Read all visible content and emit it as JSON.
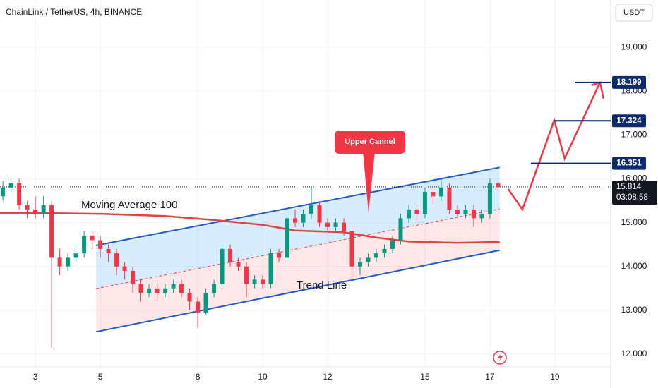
{
  "chart_data": {
    "type": "candlestick",
    "title": "ChainLink / TetherUS, 4h, BINANCE",
    "currency": "USDT",
    "up_color": "#089981",
    "down_color": "#f23645",
    "grid": true,
    "xlim": [
      1.91,
      20.72
    ],
    "xticks": [
      3,
      5,
      8,
      10,
      12,
      15,
      17,
      19
    ],
    "ylim": [
      11.71,
      20.08
    ],
    "yticks": [
      {
        "value": 12,
        "label": "12.000"
      },
      {
        "value": 13,
        "label": "13.000"
      },
      {
        "value": 14,
        "label": "14.000"
      },
      {
        "value": 15,
        "label": "15.000"
      },
      {
        "value": 16,
        "label": "16.000"
      },
      {
        "value": 17,
        "label": "17.000"
      },
      {
        "value": 18,
        "label": "18.000"
      },
      {
        "value": 19,
        "label": "19.000"
      }
    ],
    "x": [
      2,
      2.25,
      2.5,
      2.75,
      3,
      3.25,
      3.5,
      3.75,
      4,
      4.25,
      4.5,
      4.75,
      5,
      5.25,
      5.5,
      5.75,
      6,
      6.25,
      6.5,
      6.75,
      7,
      7.25,
      7.5,
      7.75,
      8,
      8.25,
      8.5,
      8.75,
      9,
      9.25,
      9.5,
      9.75,
      10,
      10.25,
      10.5,
      10.75,
      11,
      11.25,
      11.5,
      11.75,
      12,
      12.25,
      12.5,
      12.75,
      13,
      13.25,
      13.5,
      13.75,
      14,
      14.25,
      14.5,
      14.75,
      15,
      15.25,
      15.5,
      15.75,
      16,
      16.25,
      16.5,
      16.75,
      17,
      17.25
    ],
    "candles": [
      [
        15.6,
        15.95,
        15.5,
        15.8
      ],
      [
        15.8,
        16.05,
        15.7,
        15.9
      ],
      [
        15.9,
        16.0,
        15.3,
        15.4
      ],
      [
        15.4,
        15.5,
        15.1,
        15.3
      ],
      [
        15.3,
        15.6,
        15.1,
        15.2
      ],
      [
        15.2,
        15.6,
        15.1,
        15.4
      ],
      [
        15.4,
        15.5,
        12.15,
        14.2
      ],
      [
        14.2,
        14.4,
        13.8,
        14.0
      ],
      [
        14.0,
        14.3,
        13.9,
        14.2
      ],
      [
        14.2,
        14.5,
        14.1,
        14.3
      ],
      [
        14.3,
        14.8,
        14.2,
        14.7
      ],
      [
        14.7,
        14.8,
        14.4,
        14.6
      ],
      [
        14.6,
        14.7,
        14.2,
        14.4
      ],
      [
        14.4,
        14.5,
        14.1,
        14.3
      ],
      [
        14.3,
        14.4,
        13.8,
        14.0
      ],
      [
        14.0,
        14.1,
        13.7,
        13.9
      ],
      [
        13.9,
        14.0,
        13.4,
        13.6
      ],
      [
        13.6,
        13.7,
        13.2,
        13.4
      ],
      [
        13.4,
        13.6,
        13.3,
        13.5
      ],
      [
        13.5,
        13.6,
        13.2,
        13.4
      ],
      [
        13.4,
        13.6,
        13.3,
        13.5
      ],
      [
        13.5,
        13.7,
        13.4,
        13.6
      ],
      [
        13.6,
        13.7,
        13.3,
        13.4
      ],
      [
        13.4,
        13.5,
        13.0,
        13.2
      ],
      [
        13.2,
        13.3,
        12.6,
        12.95
      ],
      [
        12.95,
        13.5,
        12.9,
        13.4
      ],
      [
        13.4,
        13.7,
        13.3,
        13.6
      ],
      [
        13.6,
        14.5,
        13.5,
        14.4
      ],
      [
        14.4,
        14.5,
        14.0,
        14.1
      ],
      [
        14.1,
        14.2,
        13.9,
        14.0
      ],
      [
        14.0,
        14.1,
        13.3,
        13.6
      ],
      [
        13.6,
        13.8,
        13.5,
        13.7
      ],
      [
        13.7,
        13.8,
        13.5,
        13.6
      ],
      [
        13.6,
        14.4,
        13.5,
        14.3
      ],
      [
        14.3,
        14.4,
        14.1,
        14.2
      ],
      [
        14.2,
        15.2,
        14.1,
        15.1
      ],
      [
        15.1,
        15.3,
        14.9,
        15.0
      ],
      [
        15.0,
        15.3,
        14.9,
        15.2
      ],
      [
        15.2,
        15.8,
        15.1,
        15.4
      ],
      [
        15.4,
        15.5,
        14.9,
        15.0
      ],
      [
        15.0,
        15.1,
        14.8,
        14.9
      ],
      [
        14.9,
        15.1,
        14.8,
        15.0
      ],
      [
        15.0,
        15.1,
        14.7,
        14.8
      ],
      [
        14.8,
        14.9,
        13.7,
        14.0
      ],
      [
        14.0,
        14.2,
        13.8,
        14.1
      ],
      [
        14.1,
        14.3,
        14.0,
        14.2
      ],
      [
        14.2,
        14.4,
        14.1,
        14.3
      ],
      [
        14.3,
        14.5,
        14.2,
        14.4
      ],
      [
        14.4,
        14.7,
        14.3,
        14.6
      ],
      [
        14.6,
        15.2,
        14.5,
        15.1
      ],
      [
        15.1,
        15.4,
        15.0,
        15.3
      ],
      [
        15.3,
        15.4,
        15.0,
        15.2
      ],
      [
        15.2,
        15.8,
        15.1,
        15.7
      ],
      [
        15.7,
        15.8,
        15.4,
        15.6
      ],
      [
        15.6,
        16.0,
        15.5,
        15.8
      ],
      [
        15.8,
        15.9,
        15.2,
        15.3
      ],
      [
        15.3,
        15.4,
        15.1,
        15.2
      ],
      [
        15.2,
        15.4,
        15.1,
        15.3
      ],
      [
        15.3,
        15.4,
        14.9,
        15.1
      ],
      [
        15.1,
        15.3,
        15.0,
        15.2
      ],
      [
        15.2,
        16.0,
        15.1,
        15.9
      ],
      [
        15.9,
        15.95,
        15.7,
        15.81
      ]
    ],
    "moving_average": {
      "label": "Moving Average 100",
      "color": "#e04545",
      "x": [
        1.91,
        3,
        5,
        7,
        8.5,
        10,
        11,
        12.5,
        13.5,
        14.5,
        16,
        17.3
      ],
      "values": [
        15.22,
        15.22,
        15.2,
        15.15,
        15.06,
        14.95,
        14.82,
        14.78,
        14.66,
        14.57,
        14.54,
        14.56
      ]
    },
    "channel": {
      "color": "#1f5bc4",
      "upper": {
        "x": [
          4.87,
          17.3
        ],
        "values": [
          14.48,
          16.26
        ]
      },
      "lower": {
        "x": [
          4.87,
          17.3
        ],
        "values": [
          12.51,
          14.37
        ]
      }
    },
    "trend_label": "Trend Line",
    "callout": "Upper Cannel",
    "projection": {
      "color": "#f23645",
      "x": [
        17.56,
        18.0,
        18.98,
        19.3,
        20.39
      ],
      "values": [
        15.77,
        15.3,
        17.34,
        16.46,
        18.2
      ]
    },
    "levels": [
      {
        "value": 16.351,
        "from": 18.26
      },
      {
        "value": 17.324,
        "from": 18.98
      },
      {
        "value": 18.199,
        "from": 19.63
      }
    ],
    "last_price": 15.814,
    "countdown": "03:08:58"
  }
}
